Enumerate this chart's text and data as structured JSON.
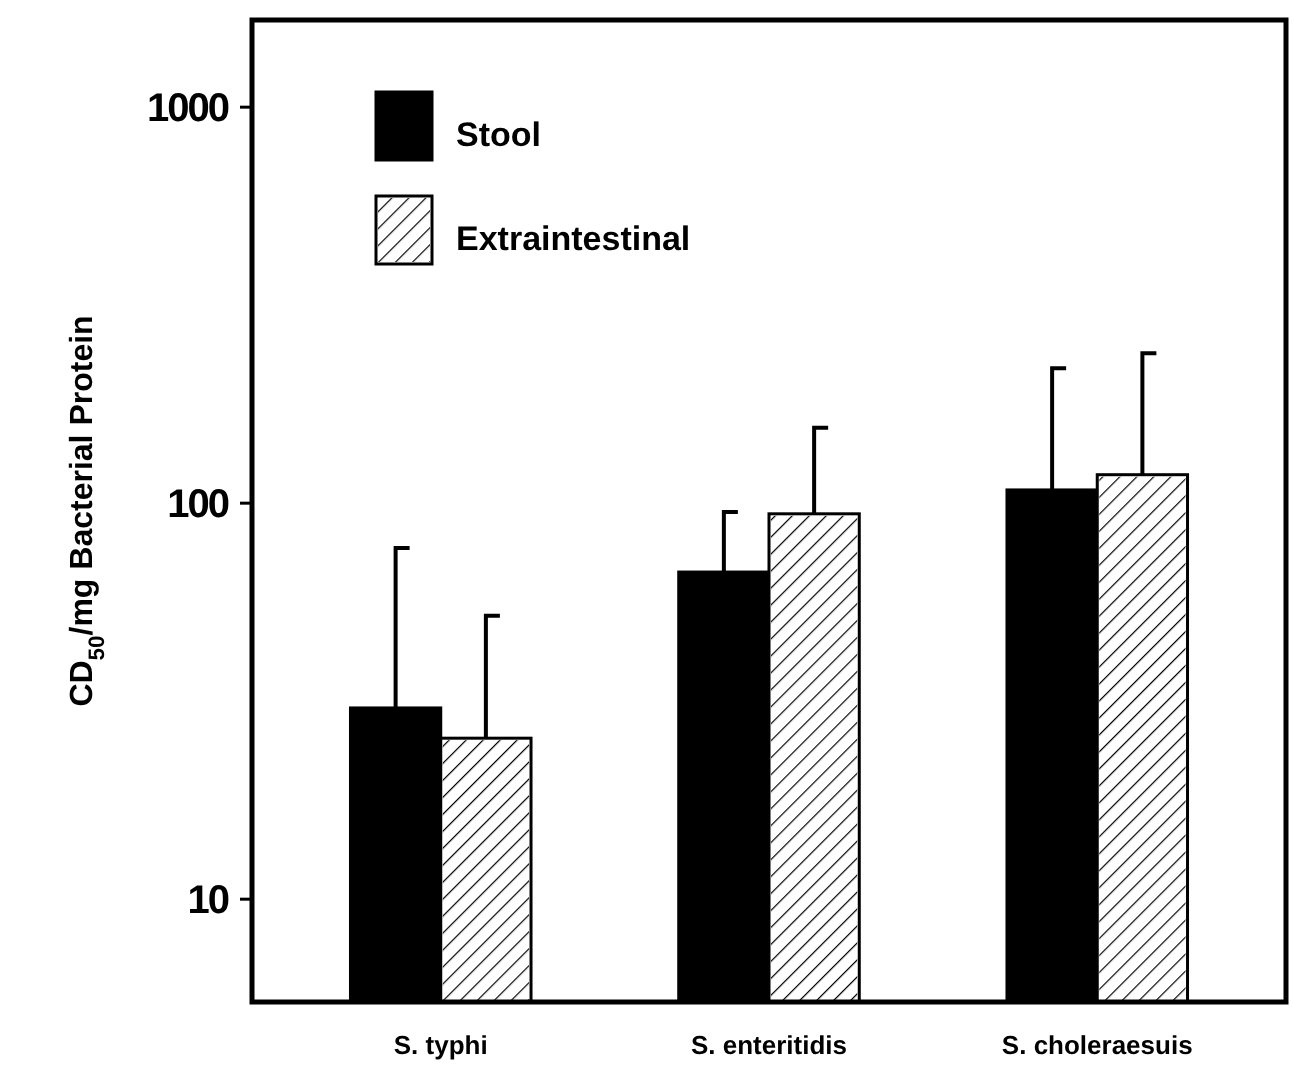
{
  "chart_data": {
    "type": "bar",
    "ylabel": "CD$_{50}$/mg Bacterial Protein",
    "categories": [
      "S. typhi",
      "S. enteritidis",
      "S. choleraesuis"
    ],
    "log": true,
    "ylim": [
      5.5,
      1660
    ],
    "yticks": [
      10,
      100,
      1000
    ],
    "grid": false,
    "legend": "top left",
    "series": [
      {
        "name": "Stool",
        "color": "#000000",
        "values": [
          30.4,
          67,
          108
        ],
        "errors": [
          [
            30.4,
            77
          ],
          [
            67,
            95
          ],
          [
            108,
            219
          ]
        ]
      },
      {
        "name": "Extraintestinal",
        "color": "#ffffff",
        "values": [
          25.5,
          94,
          118
        ],
        "errors": [
          [
            25.5,
            52
          ],
          [
            94,
            155
          ],
          [
            118,
            239
          ]
        ]
      }
    ]
  }
}
